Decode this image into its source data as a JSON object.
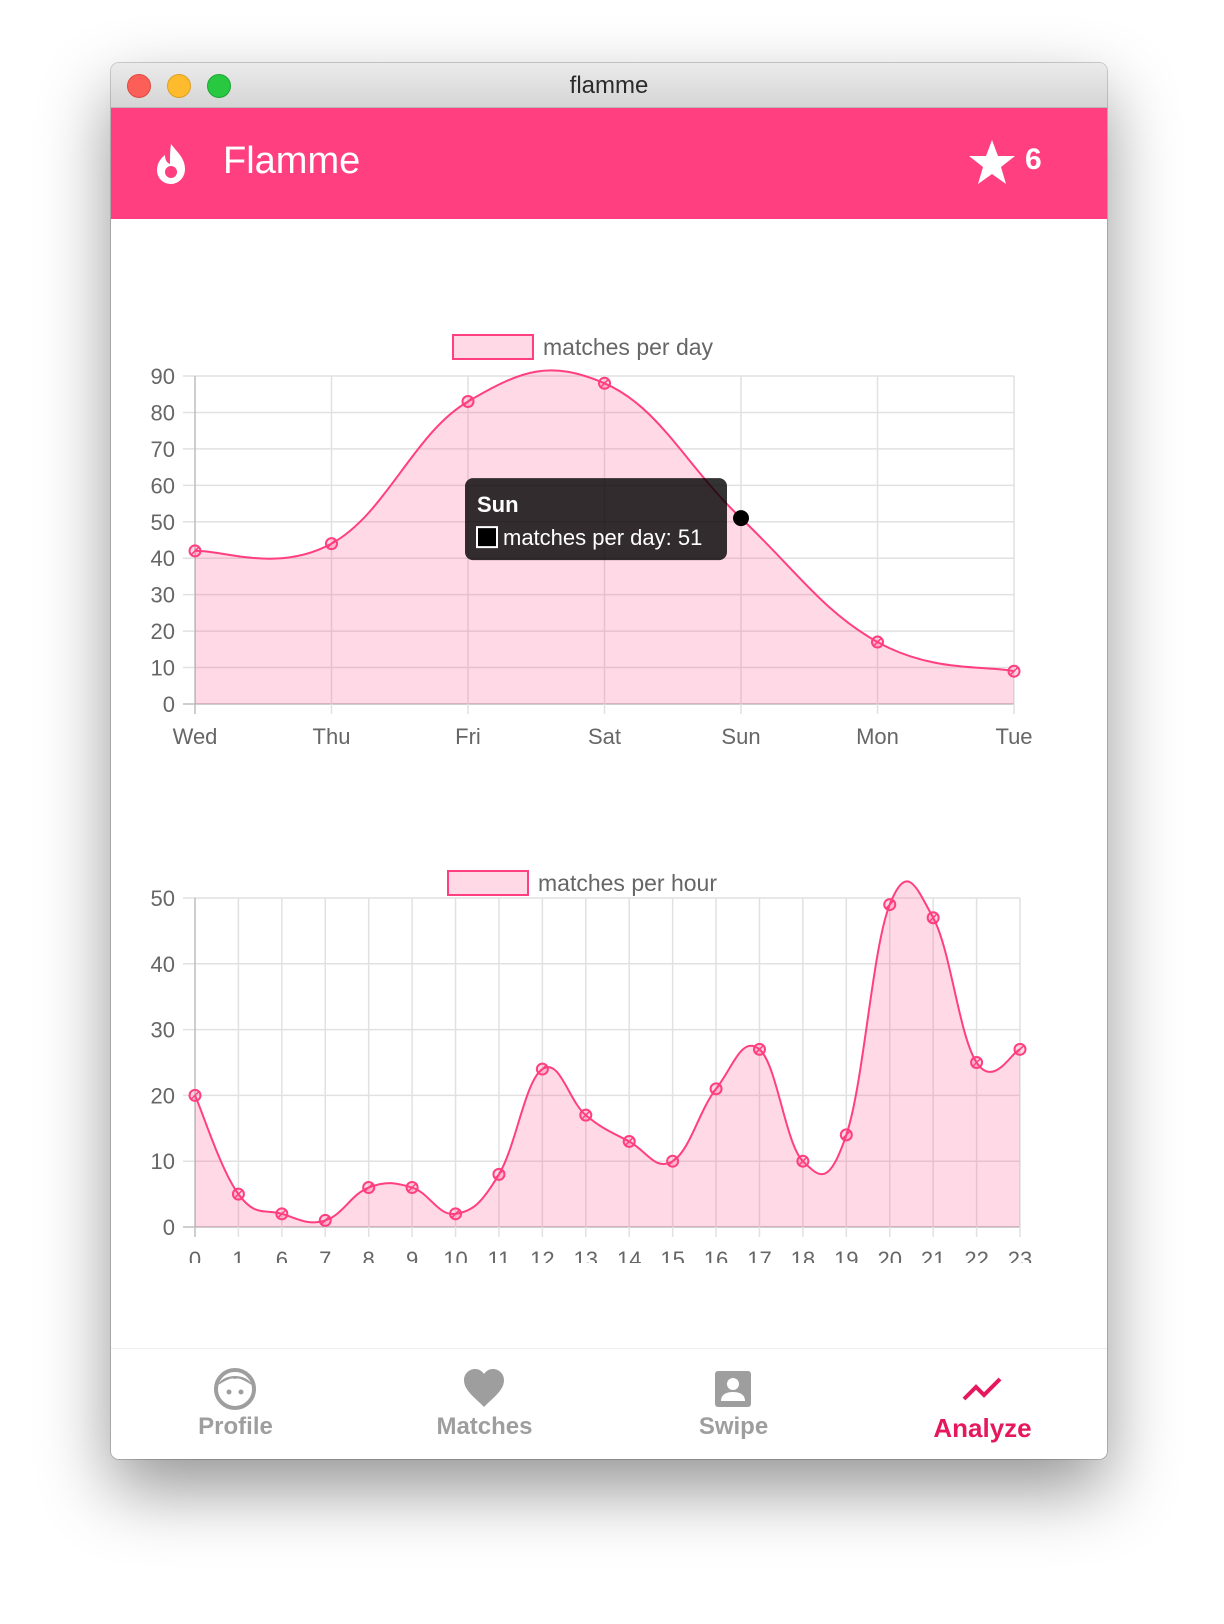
{
  "window": {
    "title": "flamme"
  },
  "header": {
    "app_name": "Flamme",
    "star_count": "6",
    "flame_icon": "flame-icon",
    "star_icon": "star-icon"
  },
  "colors": {
    "accent": "#ff3f7f",
    "line": "#ff3f7f",
    "fill": "rgba(255,63,127,0.2)",
    "active_nav": "#e6185d",
    "inactive_nav": "#9e9e9e"
  },
  "chart_data": [
    {
      "type": "area",
      "categories": [
        "Wed",
        "Thu",
        "Fri",
        "Sat",
        "Sun",
        "Mon",
        "Tue"
      ],
      "series": [
        {
          "name": "matches per day",
          "values": [
            42,
            44,
            83,
            88,
            51,
            17,
            9
          ]
        }
      ],
      "ylim": [
        0,
        90
      ],
      "yticks": [
        0,
        10,
        20,
        30,
        40,
        50,
        60,
        70,
        80,
        90
      ],
      "legend": "top",
      "grid": true,
      "tooltip": {
        "title": "Sun",
        "label": "matches per day: 51",
        "category": "Sun"
      }
    },
    {
      "type": "area",
      "categories": [
        "0",
        "1",
        "6",
        "7",
        "8",
        "9",
        "10",
        "11",
        "12",
        "13",
        "14",
        "15",
        "16",
        "17",
        "18",
        "19",
        "20",
        "21",
        "22",
        "23"
      ],
      "series": [
        {
          "name": "matches per hour",
          "values": [
            20,
            5,
            2,
            1,
            6,
            6,
            2,
            8,
            24,
            17,
            13,
            10,
            21,
            27,
            10,
            14,
            49,
            47,
            25,
            27
          ]
        }
      ],
      "ylim": [
        0,
        50
      ],
      "yticks": [
        0,
        10,
        20,
        30,
        40,
        50
      ],
      "legend": "top",
      "grid": true
    }
  ],
  "nav": {
    "items": [
      {
        "label": "Profile",
        "icon": "face-icon"
      },
      {
        "label": "Matches",
        "icon": "heart-icon"
      },
      {
        "label": "Swipe",
        "icon": "person-card-icon"
      },
      {
        "label": "Analyze",
        "icon": "trending-icon",
        "active": true
      }
    ]
  }
}
